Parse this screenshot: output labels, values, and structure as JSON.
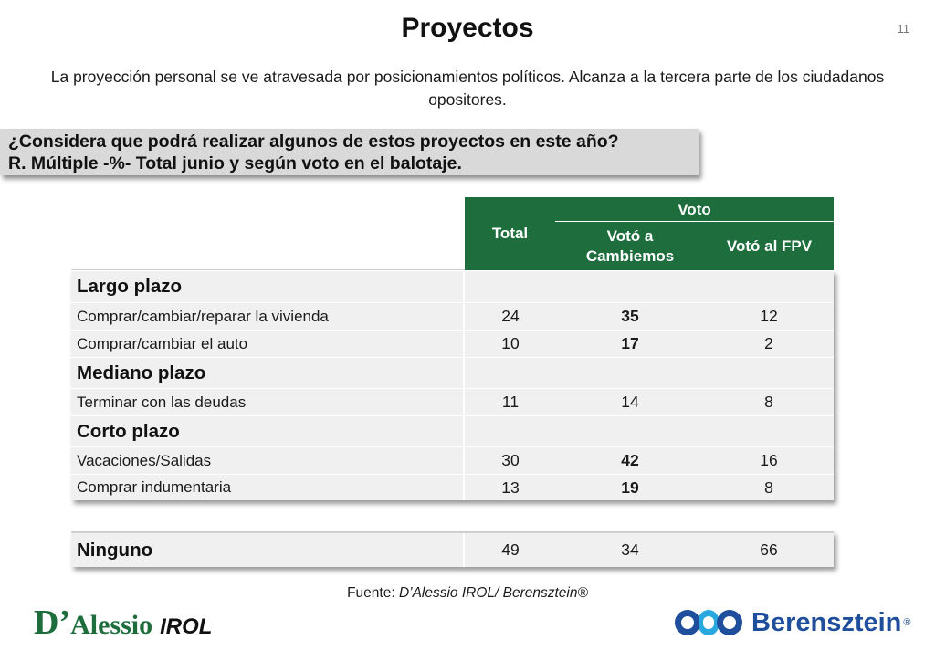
{
  "header": {
    "title": "Proyectos",
    "page_number": "11",
    "subtitle": "La proyección personal se ve atravesada por posicionamientos políticos. Alcanza a la tercera parte de los ciudadanos opositores."
  },
  "question": {
    "line1": "¿Considera que podrá realizar algunos de estos proyectos en este año?",
    "line2": "R. Múltiple -%- Total junio y según voto en el balotaje."
  },
  "table": {
    "col_total": "Total",
    "group_voto": "Voto",
    "col_cambiemos": "Votó a Cambiemos",
    "col_fpv": "Votó al FPV",
    "sections": {
      "largo": "Largo plazo",
      "mediano": "Mediano plazo",
      "corto": "Corto plazo"
    },
    "rows": [
      {
        "label": "Comprar/cambiar/reparar la vivienda",
        "total": "24",
        "cambiemos": "35",
        "fpv": "12"
      },
      {
        "label": "Comprar/cambiar el auto",
        "total": "10",
        "cambiemos": "17",
        "fpv": "2"
      },
      {
        "label": "Terminar con las deudas",
        "total": "11",
        "cambiemos": "14",
        "fpv": "8"
      },
      {
        "label": "Vacaciones/Salidas",
        "total": "30",
        "cambiemos": "42",
        "fpv": "16"
      },
      {
        "label": "Comprar indumentaria",
        "total": "13",
        "cambiemos": "19",
        "fpv": "8"
      }
    ],
    "ninguno": {
      "label": "Ninguno",
      "total": "49",
      "cambiemos": "34",
      "fpv": "66"
    }
  },
  "footer": {
    "source_prefix": "Fuente: ",
    "source_text": "D’Alessio IROL/ Berensztein®",
    "logo_left_d": "D’",
    "logo_left_alessio": "Alessio",
    "logo_left_irol": "IROL",
    "logo_right_name": "Berensztein",
    "logo_right_reg": "®"
  },
  "colors": {
    "header_green": "#1e6e3d",
    "row_gray": "#f0f0f0",
    "question_gray": "#d9d9d9",
    "brand_blue": "#1f4e9c"
  }
}
